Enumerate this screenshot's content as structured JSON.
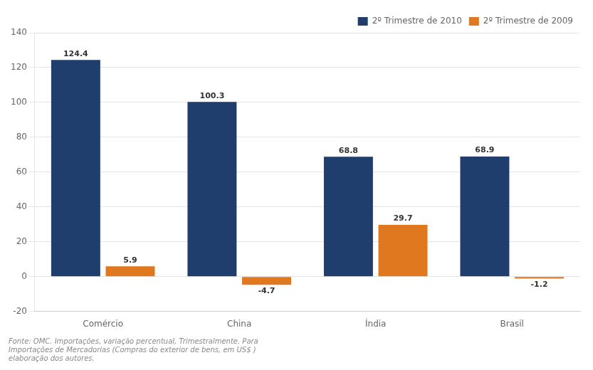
{
  "chart_data": {
    "type": "bar",
    "categories": [
      "Comércio",
      "China",
      "Índia",
      "Brasil"
    ],
    "series": [
      {
        "name": "2º Trimestre de 2010",
        "color": "#1F3E6E",
        "values": [
          124.4,
          100.3,
          68.8,
          68.9
        ]
      },
      {
        "name": "2º Trimestre de 2009",
        "color": "#E07820",
        "values": [
          5.9,
          -4.7,
          29.7,
          -1.2
        ]
      }
    ],
    "ylim": [
      -20,
      140
    ],
    "yticks": [
      -20,
      0,
      20,
      40,
      60,
      80,
      100,
      120,
      140
    ],
    "grid": "y",
    "legend": "upper right",
    "data_labels": true,
    "footnote": "Fonte: OMC. Importações, variação percentual, Trimestralmente. Para\nImportações de Mercadorias (Compras do exterior de bens, em US$ )\nelaboração dos autores."
  }
}
